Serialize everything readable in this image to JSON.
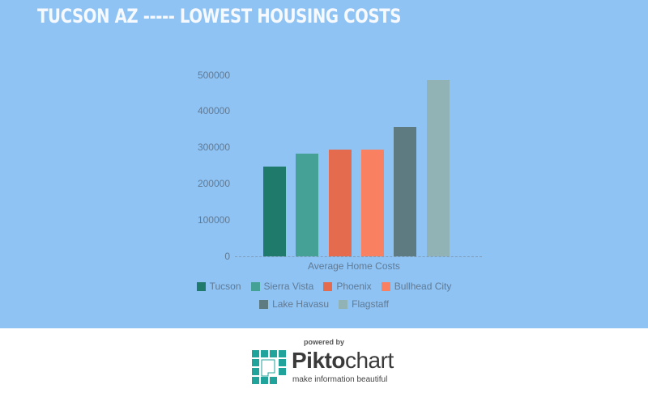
{
  "header": {
    "title": "TUCSON AZ ----- LOWEST HOUSING COSTS"
  },
  "chart_data": {
    "type": "bar",
    "title": "TUCSON AZ ----- LOWEST HOUSING COSTS",
    "xlabel": "Average Home Costs",
    "ylabel": "",
    "categories": [
      "Average Home Costs"
    ],
    "series": [
      {
        "name": "Tucson",
        "values": [
          248000
        ],
        "color": "#1f7a6c"
      },
      {
        "name": "Sierra Vista",
        "values": [
          283000
        ],
        "color": "#45a095"
      },
      {
        "name": "Phoenix",
        "values": [
          294000
        ],
        "color": "#e56b4e"
      },
      {
        "name": "Bullhead City",
        "values": [
          294000
        ],
        "color": "#fa8062"
      },
      {
        "name": "Lake Havasu",
        "values": [
          357000
        ],
        "color": "#5d7b80"
      },
      {
        "name": "Flagstaff",
        "values": [
          487000
        ],
        "color": "#92b3b5"
      }
    ],
    "yticks": [
      "500000",
      "400000",
      "300000",
      "200000",
      "100000",
      "0"
    ],
    "ylim": [
      0,
      500000
    ],
    "grid": false,
    "legend_position": "bottom"
  },
  "legend": {
    "row1": [
      "Tucson",
      "Sierra Vista",
      "Phoenix",
      "Bullhead City"
    ],
    "row2": [
      "Lake Havasu",
      "Flagstaff"
    ]
  },
  "footer": {
    "powered_by": "powered by",
    "brand_bold": "Pikto",
    "brand_light": "chart",
    "tagline": "make information beautiful"
  },
  "colors": {
    "background": "#8fc3f4",
    "title": "#f6f9fd",
    "axis_text": "#607a94"
  }
}
